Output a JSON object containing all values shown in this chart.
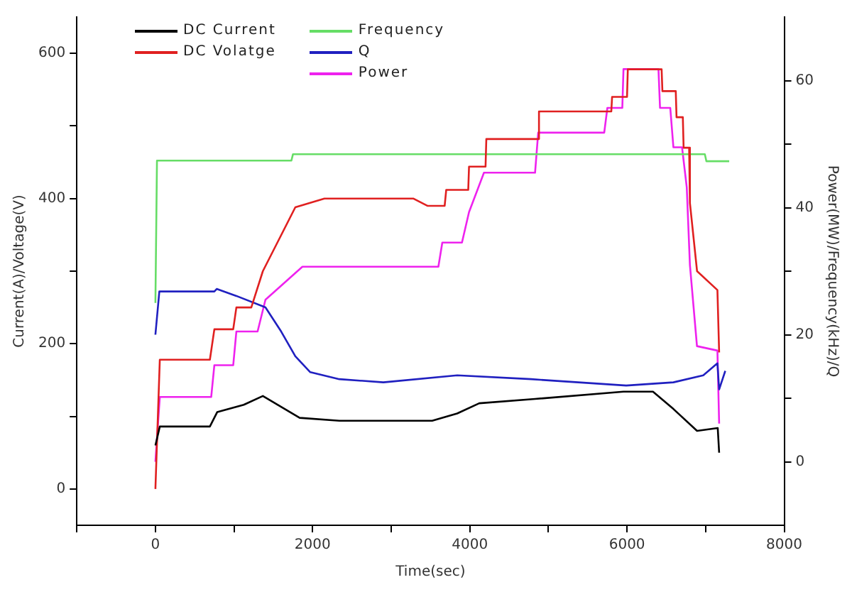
{
  "chart_data": {
    "type": "line",
    "xlabel": "Time(sec)",
    "ylabel": "Current(A)/Voltage(V)",
    "y2label": "Power(MW)/Frequency(kHz)/Q",
    "xlim": [
      -1000,
      8000
    ],
    "xticks": [
      {
        "value": -1000,
        "label": null
      },
      0,
      {
        "value": 1000,
        "label": null
      },
      2000,
      {
        "value": 3000,
        "label": null
      },
      4000,
      {
        "value": 5000,
        "label": null
      },
      6000,
      {
        "value": 7000,
        "label": null
      },
      8000
    ],
    "ylim": [
      -50,
      650
    ],
    "yticks": [
      0,
      {
        "value": 100,
        "label": null
      },
      200,
      {
        "value": 300,
        "label": null
      },
      400,
      {
        "value": 500,
        "label": null
      },
      600
    ],
    "y2lim": [
      -10,
      70
    ],
    "y2ticks": [
      0,
      {
        "value": 10,
        "label": null
      },
      20,
      {
        "value": 30,
        "label": null
      },
      40,
      {
        "value": 50,
        "label": null
      },
      60
    ],
    "legend": "top left",
    "marker": "none",
    "line_style": "solid",
    "grid": false,
    "series": [
      {
        "name": "DC Current",
        "color": "#000000",
        "x": [
          0,
          56,
          693,
          787,
          1124,
          1367,
          1835,
          2341,
          3521,
          3839,
          4120,
          4831,
          5955,
          6330,
          6592,
          6891,
          7154,
          7172
        ],
        "values": [
          60,
          86,
          86,
          106,
          116,
          128,
          98,
          94,
          94,
          104,
          118,
          124,
          134,
          134,
          110,
          80,
          84,
          50
        ]
      },
      {
        "name": "DC Volatge",
        "color": "#e02020",
        "x": [
          0,
          56,
          693,
          750,
          990,
          1030,
          1220,
          1367,
          1780,
          2150,
          3280,
          3460,
          3680,
          3700,
          3980,
          3990,
          4200,
          4210,
          4870,
          4880,
          5800,
          5810,
          6000,
          6010,
          6440,
          6450,
          6620,
          6630,
          6710,
          6720,
          6790,
          6800,
          6891,
          7150,
          7172
        ],
        "values": [
          0,
          178,
          178,
          220,
          220,
          250,
          250,
          300,
          388,
          400,
          400,
          390,
          390,
          412,
          412,
          444,
          444,
          482,
          482,
          520,
          520,
          540,
          540,
          578,
          578,
          548,
          548,
          512,
          512,
          470,
          470,
          394,
          300,
          274,
          188
        ]
      },
      {
        "name": "Frequency",
        "color": "#66dd66",
        "axis": "y2",
        "x": [
          0,
          20,
          1730,
          1750,
          6990,
          7010,
          7300
        ],
        "values": [
          25,
          47.4,
          47.4,
          48.4,
          48.4,
          47.3,
          47.3
        ]
      },
      {
        "name": "Q",
        "color": "#2020c0",
        "axis": "y2",
        "x": [
          0,
          50,
          750,
          780,
          1030,
          1400,
          1600,
          1780,
          1970,
          2340,
          2900,
          3840,
          4780,
          5990,
          6590,
          6970,
          7150,
          7172,
          7250
        ],
        "values": [
          20,
          26.8,
          26.8,
          27.2,
          26.1,
          24.3,
          20.5,
          16.6,
          14.1,
          13,
          12.5,
          13.6,
          13,
          12,
          12.5,
          13.6,
          15.5,
          11.4,
          14.3
        ]
      },
      {
        "name": "Power",
        "color": "#ee22ee",
        "axis": "y2",
        "x": [
          0,
          56,
          710,
          750,
          990,
          1030,
          1300,
          1400,
          1870,
          3600,
          3650,
          3900,
          3990,
          4180,
          4830,
          4870,
          5710,
          5750,
          5940,
          5955,
          6400,
          6420,
          6550,
          6590,
          6700,
          6760,
          6800,
          6890,
          7150,
          7172
        ],
        "values": [
          0,
          10.2,
          10.2,
          15.2,
          15.2,
          20.5,
          20.5,
          25.5,
          30.7,
          30.7,
          34.5,
          34.5,
          39.3,
          45.5,
          45.5,
          51.8,
          51.8,
          55.7,
          55.7,
          61.8,
          61.8,
          55.7,
          55.7,
          49.5,
          49.5,
          43.2,
          31,
          18.2,
          17.5,
          6
        ]
      }
    ]
  }
}
